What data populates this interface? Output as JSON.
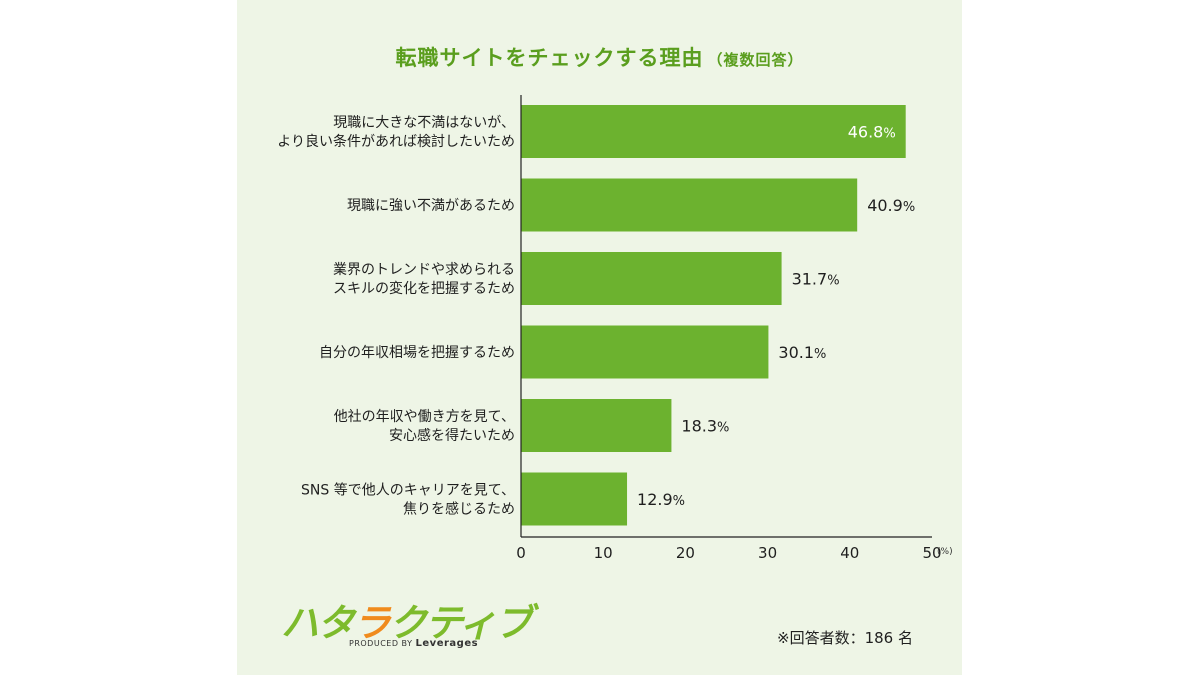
{
  "title": "転職サイトをチェックする理由",
  "title_sub": "（複数回答）",
  "colors": {
    "bar": "#6cb22f",
    "title": "#5a9e1e",
    "panel": "#eef5e6"
  },
  "chart_data": {
    "type": "bar",
    "orientation": "horizontal",
    "categories": [
      [
        "現職に大きな不満はないが、",
        "より良い条件があれば検討したいため"
      ],
      [
        "現職に強い不満があるため"
      ],
      [
        "業界のトレンドや求められる",
        "スキルの変化を把握するため"
      ],
      [
        "自分の年収相場を把握するため"
      ],
      [
        "他社の年収や働き方を見て、",
        "安心感を得たいため"
      ],
      [
        "SNS 等で他人のキャリアを見て、",
        "焦りを感じるため"
      ]
    ],
    "values": [
      46.8,
      40.9,
      31.7,
      30.1,
      18.3,
      12.9
    ],
    "data_labels": [
      "46.8",
      "40.9",
      "31.7",
      "30.1",
      "18.3",
      "12.9"
    ],
    "label_unit": "%",
    "xlim": [
      0,
      50
    ],
    "xticks": [
      0,
      10,
      20,
      30,
      40,
      50
    ],
    "xunit": "(%)",
    "grid": false
  },
  "logo": {
    "name": "ハタラクティブ",
    "produced_by": "PRODUCED BY",
    "company": "Leverages"
  },
  "note": "※回答者数：186 名"
}
